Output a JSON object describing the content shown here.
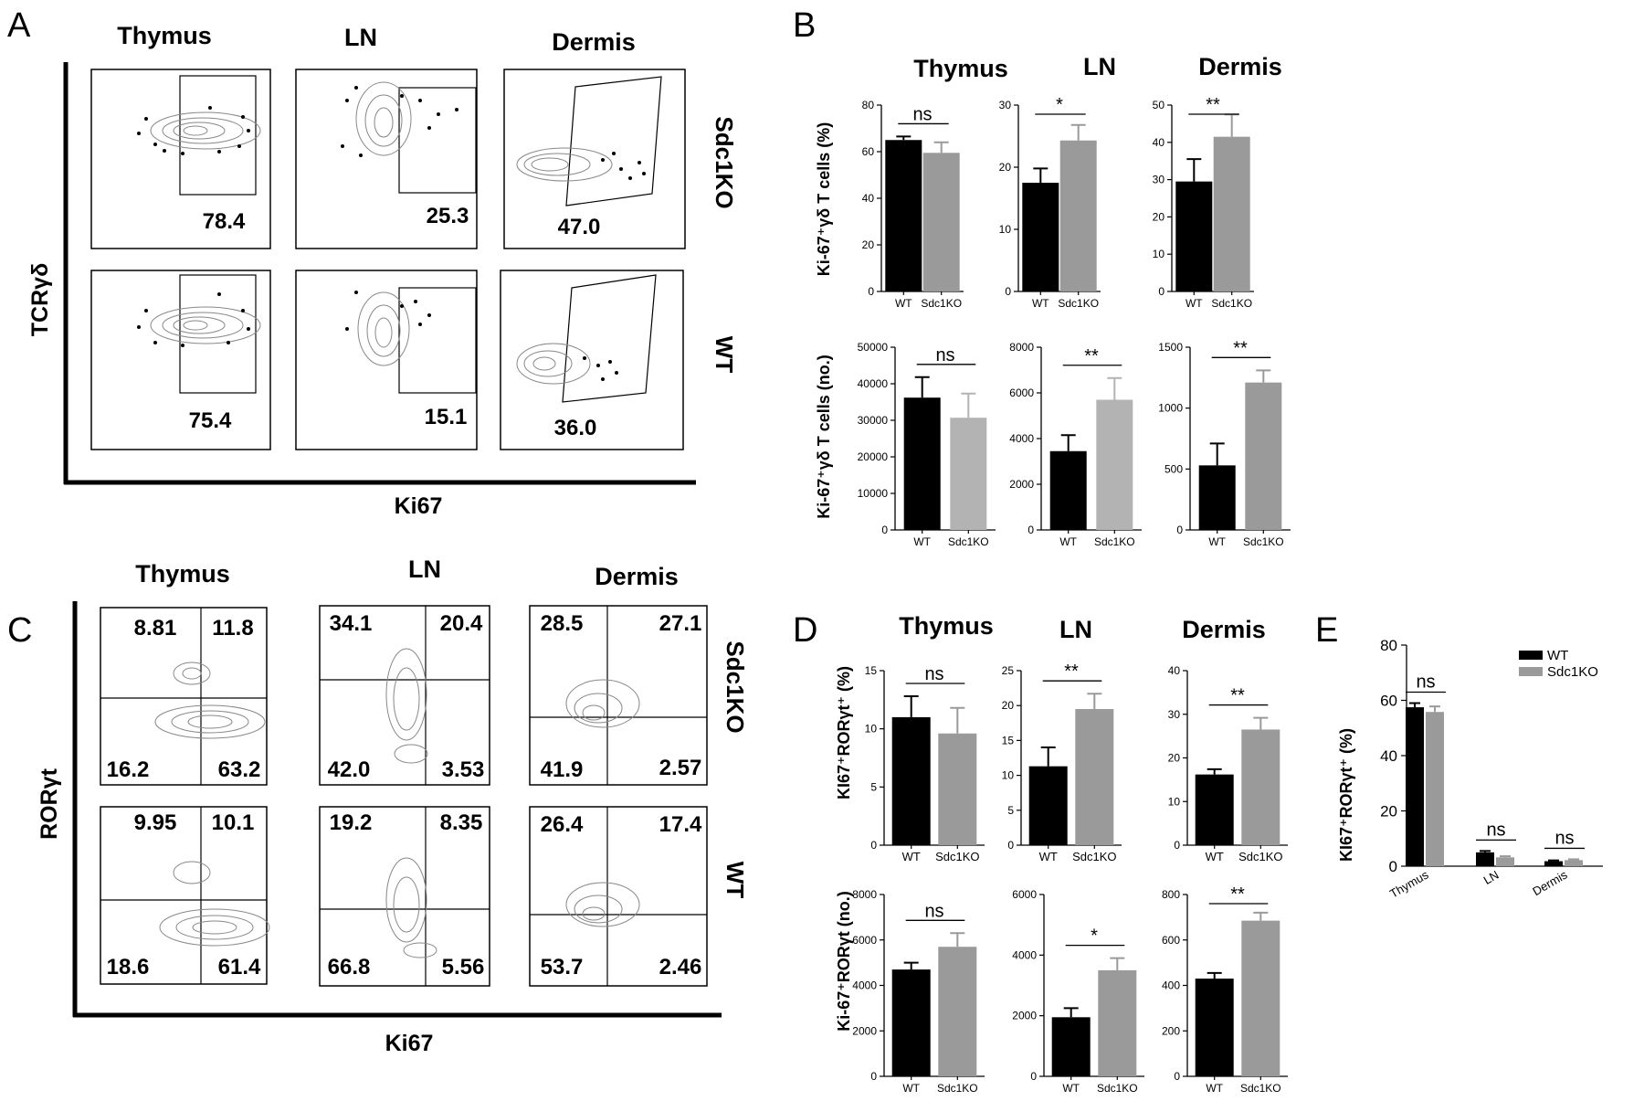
{
  "panels": {
    "A": "A",
    "B": "B",
    "C": "C",
    "D": "D",
    "E": "E"
  },
  "colors": {
    "wt": "#000000",
    "ko": "#9a9a9a",
    "ko_light": "#b3b3b3",
    "axis": "#000000"
  },
  "panelA": {
    "tissues": [
      "Thymus",
      "LN",
      "Dermis"
    ],
    "rows": [
      "Sdc1KO",
      "WT"
    ],
    "ylabel": "TCRγδ",
    "xlabel": "Ki67",
    "gate_percent": [
      [
        "78.4",
        "25.3",
        "47.0"
      ],
      [
        "75.4",
        "15.1",
        "36.0"
      ]
    ]
  },
  "panelC": {
    "tissues": [
      "Thymus",
      "LN",
      "Dermis"
    ],
    "rows": [
      "Sdc1KO",
      "WT"
    ],
    "ylabel": "RORγt",
    "xlabel": "Ki67",
    "quadrants": [
      [
        [
          "8.81",
          "11.8",
          "16.2",
          "63.2"
        ],
        [
          "34.1",
          "20.4",
          "42.0",
          "3.53"
        ],
        [
          "28.5",
          "27.1",
          "41.9",
          "2.57"
        ]
      ],
      [
        [
          "9.95",
          "10.1",
          "18.6",
          "61.4"
        ],
        [
          "19.2",
          "8.35",
          "66.8",
          "5.56"
        ],
        [
          "26.4",
          "17.4",
          "53.7",
          "2.46"
        ]
      ]
    ]
  },
  "chart_data": [
    {
      "id": "B-percent",
      "type": "bar",
      "panel": "B",
      "title": "Thymus",
      "categories": [
        "WT",
        "Sdc1KO"
      ],
      "values": [
        65,
        59.5
      ],
      "errors": [
        1.5,
        4.5
      ],
      "ylim": [
        0,
        80
      ],
      "ticks": [
        0,
        20,
        40,
        60,
        80
      ],
      "sig": "ns",
      "ylabel": "Ki-67⁺γδ T cells (%)"
    },
    {
      "id": "B-percent-ln",
      "type": "bar",
      "panel": "B",
      "title": "LN",
      "categories": [
        "WT",
        "Sdc1KO"
      ],
      "values": [
        17.5,
        24.3
      ],
      "errors": [
        2.3,
        2.5
      ],
      "ylim": [
        0,
        30
      ],
      "ticks": [
        0,
        10,
        20,
        30
      ],
      "sig": "*"
    },
    {
      "id": "B-percent-dermis",
      "type": "bar",
      "panel": "B",
      "title": "Dermis",
      "categories": [
        "WT",
        "Sdc1KO"
      ],
      "values": [
        29.5,
        41.5
      ],
      "errors": [
        6,
        6
      ],
      "ylim": [
        0,
        50
      ],
      "ticks": [
        0,
        10,
        20,
        30,
        40,
        50
      ],
      "sig": "**"
    },
    {
      "id": "B-number-thymus",
      "type": "bar",
      "panel": "B",
      "categories": [
        "WT",
        "Sdc1KO"
      ],
      "values": [
        36200,
        30700
      ],
      "errors": [
        5600,
        6600
      ],
      "ylim": [
        0,
        50000
      ],
      "ticks": [
        0,
        10000,
        20000,
        30000,
        40000,
        50000
      ],
      "sig": "ns",
      "ylabel": "Ki-67⁺γδ T cells (no.)"
    },
    {
      "id": "B-number-ln",
      "type": "bar",
      "panel": "B",
      "categories": [
        "WT",
        "Sdc1KO"
      ],
      "values": [
        3450,
        5700
      ],
      "errors": [
        700,
        950
      ],
      "ylim": [
        0,
        8000
      ],
      "ticks": [
        0,
        2000,
        4000,
        6000,
        8000
      ],
      "sig": "**"
    },
    {
      "id": "B-number-dermis",
      "type": "bar",
      "panel": "B",
      "categories": [
        "WT",
        "Sdc1KO"
      ],
      "values": [
        530,
        1210
      ],
      "errors": [
        180,
        100
      ],
      "ylim": [
        0,
        1500
      ],
      "ticks": [
        0,
        500,
        1000,
        1500
      ],
      "sig": "**"
    },
    {
      "id": "D-percent-thymus",
      "type": "bar",
      "panel": "D",
      "title": "Thymus",
      "categories": [
        "WT",
        "Sdc1KO"
      ],
      "values": [
        11,
        9.6
      ],
      "errors": [
        1.8,
        2.2
      ],
      "ylim": [
        0,
        15
      ],
      "ticks": [
        0,
        5,
        10,
        15
      ],
      "sig": "ns",
      "ylabel": "KI67⁺RORγt⁺ (%)"
    },
    {
      "id": "D-percent-ln",
      "type": "bar",
      "panel": "D",
      "title": "LN",
      "categories": [
        "WT",
        "Sdc1KO"
      ],
      "values": [
        11.3,
        19.5
      ],
      "errors": [
        2.7,
        2.2
      ],
      "ylim": [
        0,
        25
      ],
      "ticks": [
        0,
        5,
        10,
        15,
        20,
        25
      ],
      "sig": "**"
    },
    {
      "id": "D-percent-dermis",
      "type": "bar",
      "panel": "D",
      "title": "Dermis",
      "categories": [
        "WT",
        "Sdc1KO"
      ],
      "values": [
        16.2,
        26.5
      ],
      "errors": [
        1.2,
        2.7
      ],
      "ylim": [
        0,
        40
      ],
      "ticks": [
        0,
        10,
        20,
        30,
        40
      ],
      "sig": "**"
    },
    {
      "id": "D-number-thymus",
      "type": "bar",
      "panel": "D",
      "categories": [
        "WT",
        "Sdc1KO"
      ],
      "values": [
        4700,
        5700
      ],
      "errors": [
        300,
        600
      ],
      "ylim": [
        0,
        8000
      ],
      "ticks": [
        0,
        2000,
        4000,
        6000,
        8000
      ],
      "sig": "ns",
      "ylabel": "Ki-67⁺RORγt (no.)"
    },
    {
      "id": "D-number-ln",
      "type": "bar",
      "panel": "D",
      "categories": [
        "WT",
        "Sdc1KO"
      ],
      "values": [
        1950,
        3500
      ],
      "errors": [
        300,
        400
      ],
      "ylim": [
        0,
        6000
      ],
      "ticks": [
        0,
        2000,
        4000,
        6000
      ],
      "sig": "*"
    },
    {
      "id": "D-number-dermis",
      "type": "bar",
      "panel": "D",
      "categories": [
        "WT",
        "Sdc1KO"
      ],
      "values": [
        430,
        685
      ],
      "errors": [
        25,
        35
      ],
      "ylim": [
        0,
        800
      ],
      "ticks": [
        0,
        200,
        400,
        600,
        800
      ],
      "sig": "**"
    },
    {
      "id": "E",
      "type": "bar",
      "panel": "E",
      "categories": [
        "Thymus",
        "LN",
        "Dermis"
      ],
      "series": [
        {
          "name": "WT",
          "values": [
            57.5,
            5,
            1.8
          ],
          "errors": [
            1.5,
            0.5,
            0.3
          ]
        },
        {
          "name": "Sdc1KO",
          "values": [
            55.8,
            3.2,
            2.2
          ],
          "errors": [
            2,
            0.4,
            0.3
          ]
        }
      ],
      "ylim": [
        0,
        80
      ],
      "ticks": [
        0,
        20,
        40,
        60,
        80
      ],
      "sig": [
        "ns",
        "ns",
        "ns"
      ],
      "ylabel": "KI67⁺RORγt⁺ (%)",
      "legend": "top-right"
    }
  ]
}
